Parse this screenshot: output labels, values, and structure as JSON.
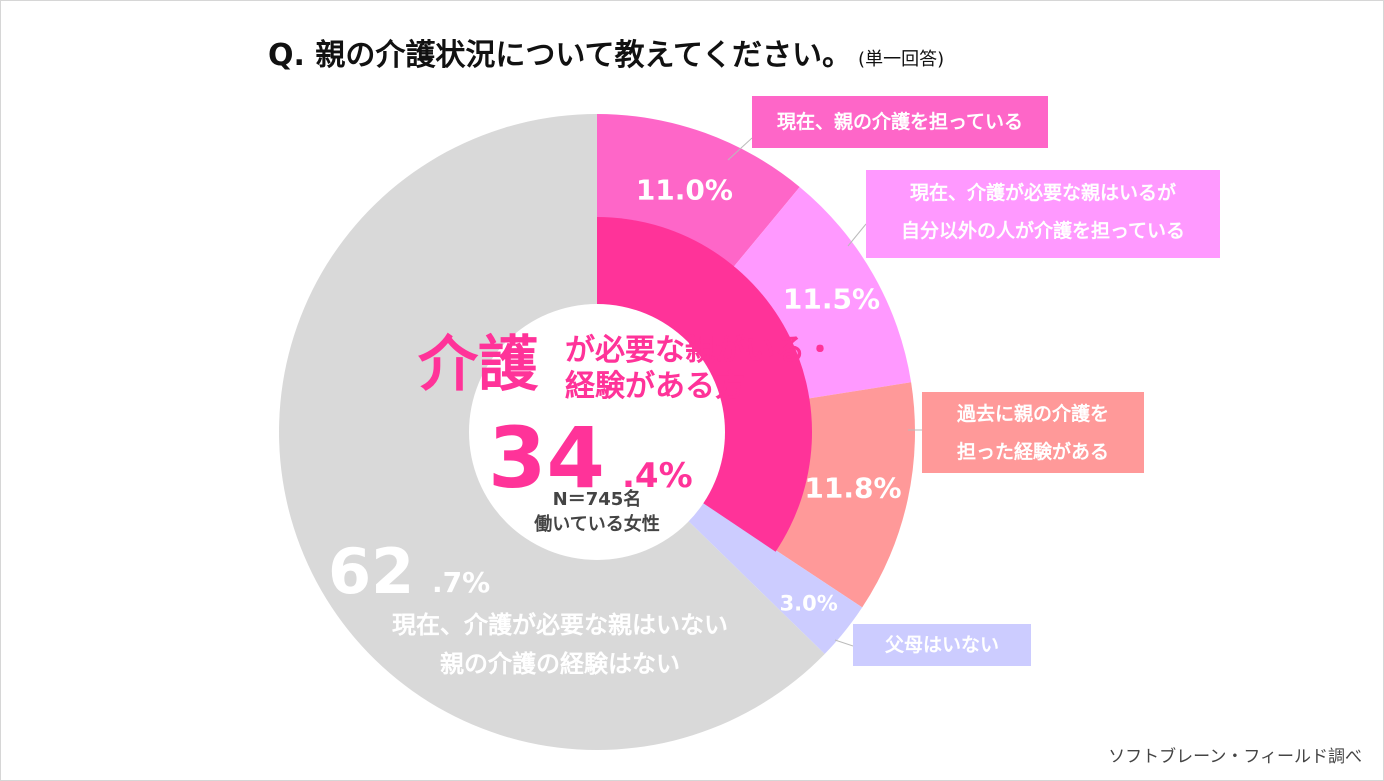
{
  "title": {
    "question": "Q.  親の介護状況について教えてください。",
    "note": "(単一回答)"
  },
  "chart_data": {
    "type": "pie",
    "title": "Q.  親の介護状況について教えてください。(単一回答)",
    "unit": "%",
    "slices": [
      {
        "label": "現在、親の介護を担っている",
        "value": 11.0,
        "value_label": "11.0%",
        "color": "#fe66c8"
      },
      {
        "label": "現在、介護が必要な親はいるが自分以外の人が介護を担っている",
        "value": 11.5,
        "value_label": "11.5%",
        "color": "#ff99ff"
      },
      {
        "label": "過去に親の介護を担った経験がある",
        "value": 11.8,
        "value_label": "11.8%",
        "color": "#ff9999"
      },
      {
        "label": "父母はいない",
        "value": 3.0,
        "value_label": "3.0%",
        "color": "#ccccff"
      },
      {
        "label": "現在、介護が必要な親はいない親の介護の経験はない",
        "value": 62.7,
        "value_label": "62.7%",
        "color": "#d9d9d9"
      }
    ],
    "inner_group": {
      "label": "介護が必要な親がいる・経験がある方",
      "value": 34.4,
      "color": "#ff3399"
    }
  },
  "callouts": {
    "c1": "現在、親の介護を担っている",
    "c2_line1": "現在、介護が必要な親はいるが",
    "c2_line2": "自分以外の人が介護を担っている",
    "c3_line1": "過去に親の介護を",
    "c3_line2": "担った経験がある",
    "c4": "父母はいない"
  },
  "center": {
    "label_big": "介護",
    "label_line1": "が必要な親がいる・",
    "label_line2": "経験がある方",
    "value_int": "34",
    "value_dec": ".4%",
    "sample": "N＝745名",
    "respondents": "働いている女性"
  },
  "gray_label": {
    "value_int": "62",
    "value_dec": ".7%",
    "line1": "現在、介護が必要な親はいない",
    "line2": "親の介護の経験はない"
  },
  "credit": "ソフトブレーン・フィールド調べ"
}
